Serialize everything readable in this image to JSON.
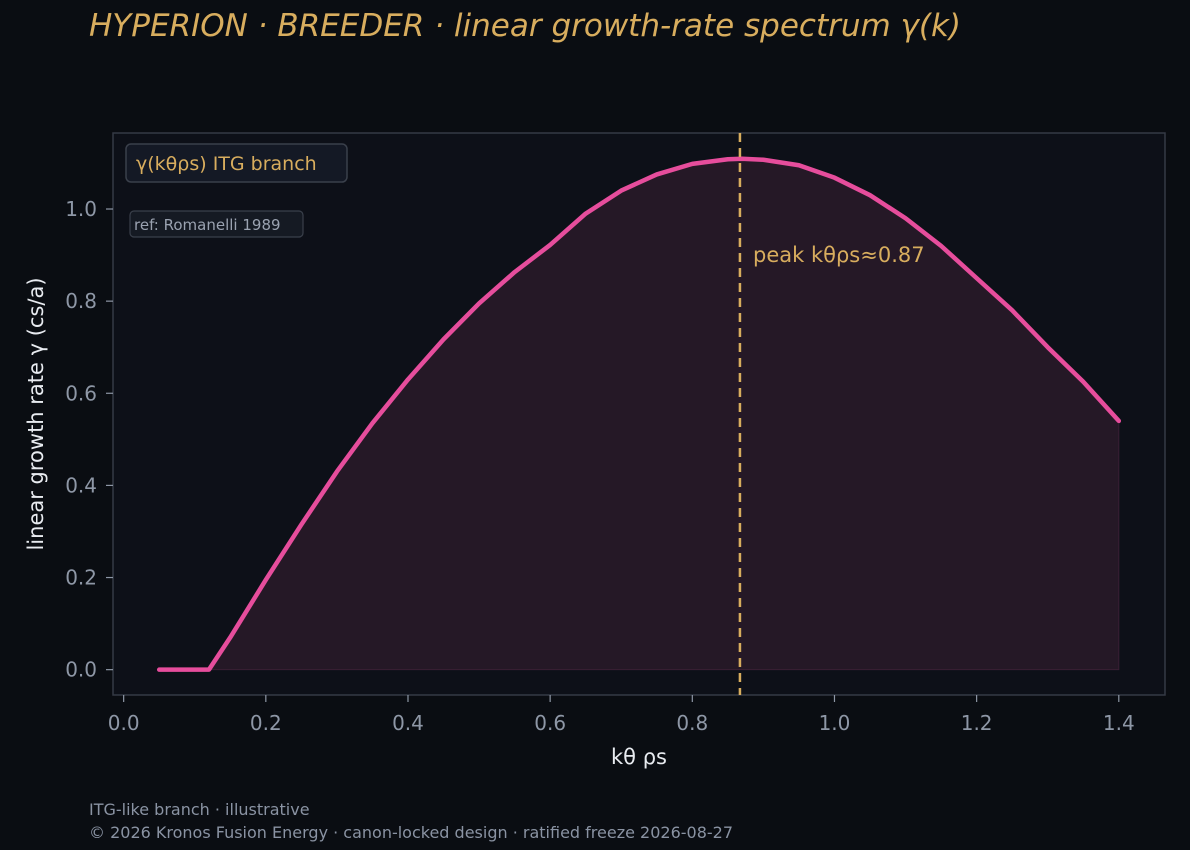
{
  "title": "HYPERION · BREEDER  ·  linear growth-rate spectrum γ(k)",
  "footer": {
    "note": "ITG-like branch · illustrative",
    "copyright": "© 2026 Kronos Fusion Energy · canon-locked design · ratified freeze 2026-08-27"
  },
  "colors": {
    "background": "#0a0d12",
    "plot_background": "#0d1018",
    "curve": "#e64d9c",
    "fill": "#251826",
    "accent": "#d8ad5e",
    "tick": "#8e97a6",
    "frame": "#343a45"
  },
  "chart_data": {
    "type": "area",
    "title": "HYPERION · BREEDER  ·  linear growth-rate spectrum γ(k)",
    "xlabel": "kθ ρs",
    "ylabel": "linear growth rate γ  (cs/a)",
    "xlim": [
      -0.015,
      1.465
    ],
    "ylim": [
      -0.055,
      1.165
    ],
    "xticks": [
      0.0,
      0.2,
      0.4,
      0.6,
      0.8,
      1.0,
      1.2,
      1.4
    ],
    "xtick_labels": [
      "0.0",
      "0.2",
      "0.4",
      "0.6",
      "0.8",
      "1.0",
      "1.2",
      "1.4"
    ],
    "yticks": [
      0.0,
      0.2,
      0.4,
      0.6,
      0.8,
      1.0
    ],
    "ytick_labels": [
      "0.0",
      "0.2",
      "0.4",
      "0.6",
      "0.8",
      "1.0"
    ],
    "grid": false,
    "legend_position": "top-left",
    "series": [
      {
        "name": "γ(kθρs) ITG branch",
        "x": [
          0.05,
          0.08,
          0.12,
          0.15,
          0.2,
          0.25,
          0.3,
          0.35,
          0.4,
          0.45,
          0.5,
          0.55,
          0.6,
          0.65,
          0.7,
          0.75,
          0.8,
          0.85,
          0.87,
          0.9,
          0.95,
          1.0,
          1.05,
          1.1,
          1.15,
          1.2,
          1.25,
          1.3,
          1.35,
          1.4
        ],
        "y": [
          0.0,
          0.0,
          0.0,
          0.07,
          0.195,
          0.315,
          0.43,
          0.535,
          0.63,
          0.717,
          0.795,
          0.863,
          0.922,
          0.99,
          1.04,
          1.075,
          1.098,
          1.108,
          1.109,
          1.107,
          1.095,
          1.068,
          1.03,
          0.98,
          0.92,
          0.85,
          0.78,
          0.7,
          0.625,
          0.54
        ]
      }
    ],
    "peak": {
      "x": 0.867,
      "label": "peak kθρs≈0.87"
    },
    "annotations": {
      "reference": "ref: Romanelli 1989"
    }
  }
}
